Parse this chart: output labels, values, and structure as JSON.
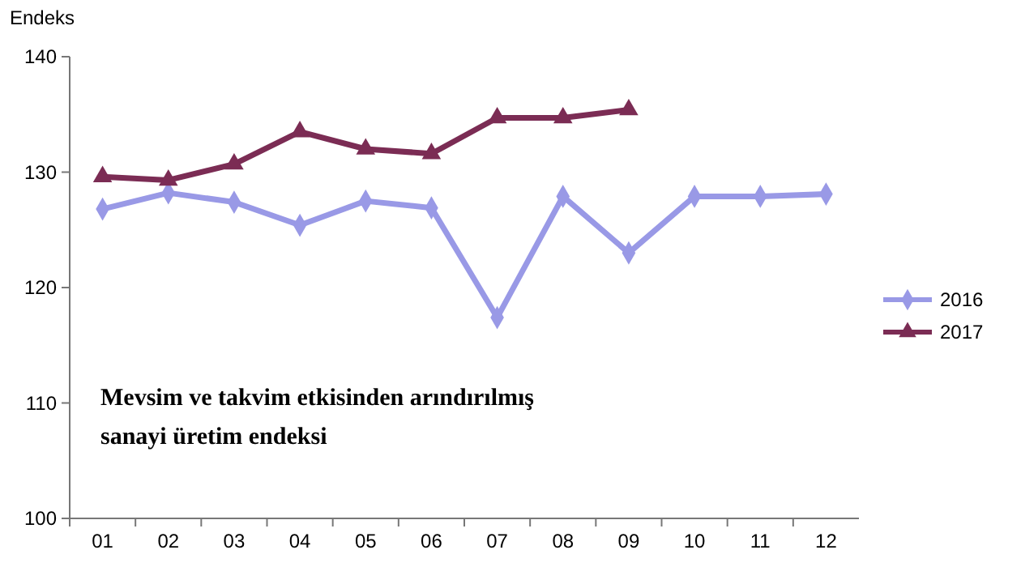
{
  "chart_data": {
    "type": "line",
    "ylabel": "Endeks",
    "categories": [
      "01",
      "02",
      "03",
      "04",
      "05",
      "06",
      "07",
      "08",
      "09",
      "10",
      "11",
      "12"
    ],
    "ylim": [
      100,
      140
    ],
    "yticks": [
      100,
      110,
      120,
      130,
      140
    ],
    "grid": false,
    "legend": "right",
    "line_style": "solid",
    "series": [
      {
        "name": "2016",
        "color": "#9999e6",
        "marker": "diamond",
        "values": [
          126.8,
          128.2,
          127.4,
          125.4,
          127.5,
          126.9,
          117.4,
          127.9,
          123.0,
          127.9,
          127.9,
          128.1
        ]
      },
      {
        "name": "2017",
        "color": "#7b2c54",
        "marker": "triangle",
        "values": [
          129.6,
          129.3,
          130.7,
          133.5,
          132.0,
          131.6,
          134.7,
          134.7,
          135.4,
          null,
          null,
          null
        ]
      }
    ],
    "annotations": [
      "Mevsim ve takvim etkisinden arındırılmış sanayi üretim endeksi"
    ]
  }
}
